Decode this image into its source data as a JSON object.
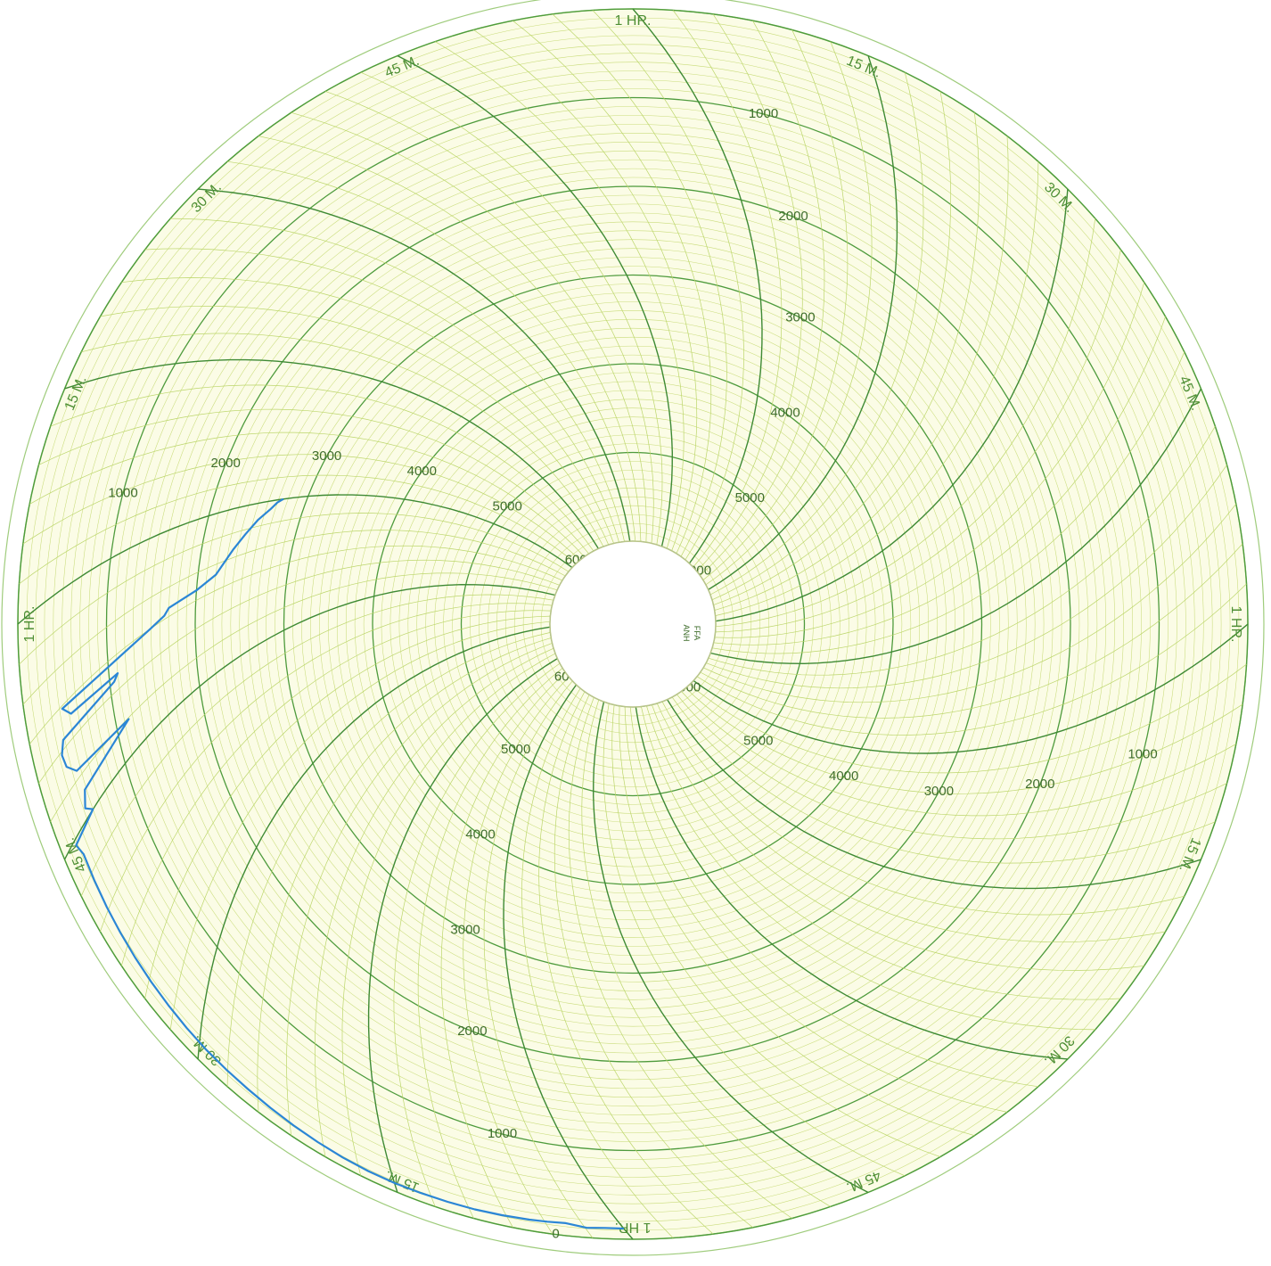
{
  "chart_data": {
    "type": "line",
    "radial_scale": {
      "unit": "",
      "labels": [
        "0",
        "1000",
        "2000",
        "3000",
        "4000",
        "5000",
        "6000"
      ],
      "ticks": [
        0,
        1000,
        2000,
        3000,
        4000,
        5000,
        6000
      ],
      "ylim": [
        0,
        6000
      ]
    },
    "time_scale": {
      "revolution": "1 HR",
      "labels_per_quadrant": [
        "15 M.",
        "30 M.",
        "45 M.",
        "1 HR."
      ]
    },
    "center_text": [
      "FFA",
      "ANH"
    ],
    "grid": true,
    "series": [
      {
        "color": "#2b86d6",
        "points": [
          {
            "t": 0.0,
            "v": 120
          },
          {
            "t": 0.02,
            "v": 120
          },
          {
            "t": 0.04,
            "v": 110
          },
          {
            "t": 0.06,
            "v": 140
          },
          {
            "t": 0.08,
            "v": 130
          },
          {
            "t": 0.1,
            "v": 120
          },
          {
            "t": 0.13,
            "v": 110
          },
          {
            "t": 0.16,
            "v": 100
          },
          {
            "t": 0.19,
            "v": 95
          },
          {
            "t": 0.22,
            "v": 90
          },
          {
            "t": 0.25,
            "v": 85
          },
          {
            "t": 0.28,
            "v": 85
          },
          {
            "t": 0.31,
            "v": 90
          },
          {
            "t": 0.34,
            "v": 100
          },
          {
            "t": 0.37,
            "v": 110
          },
          {
            "t": 0.4,
            "v": 120
          },
          {
            "t": 0.43,
            "v": 130
          },
          {
            "t": 0.46,
            "v": 135
          },
          {
            "t": 0.49,
            "v": 140
          },
          {
            "t": 0.52,
            "v": 150
          },
          {
            "t": 0.55,
            "v": 160
          },
          {
            "t": 0.58,
            "v": 170
          },
          {
            "t": 0.61,
            "v": 180
          },
          {
            "t": 0.64,
            "v": 190
          },
          {
            "t": 0.67,
            "v": 200
          },
          {
            "t": 0.7,
            "v": 210
          },
          {
            "t": 0.73,
            "v": 220
          },
          {
            "t": 0.745,
            "v": 180
          },
          {
            "t": 0.75,
            "v": 500
          },
          {
            "t": 0.76,
            "v": 420
          },
          {
            "t": 0.775,
            "v": 480
          },
          {
            "t": 0.79,
            "v": 1150
          },
          {
            "t": 0.8,
            "v": 450
          },
          {
            "t": 0.815,
            "v": 350
          },
          {
            "t": 0.83,
            "v": 330
          },
          {
            "t": 0.842,
            "v": 380
          },
          {
            "t": 0.846,
            "v": 1050
          },
          {
            "t": 0.852,
            "v": 1100
          },
          {
            "t": 0.858,
            "v": 520
          },
          {
            "t": 0.872,
            "v": 430
          },
          {
            "t": 0.875,
            "v": 1500
          },
          {
            "t": 0.88,
            "v": 1650
          },
          {
            "t": 0.887,
            "v": 1700
          },
          {
            "t": 0.89,
            "v": 2000
          },
          {
            "t": 0.9,
            "v": 2200
          },
          {
            "t": 0.93,
            "v": 2350
          },
          {
            "t": 0.95,
            "v": 2450
          },
          {
            "t": 0.97,
            "v": 2550
          },
          {
            "t": 0.985,
            "v": 2650
          },
          {
            "t": 0.995,
            "v": 2700
          },
          {
            "t": 1.0,
            "v": 2750
          }
        ]
      }
    ]
  }
}
